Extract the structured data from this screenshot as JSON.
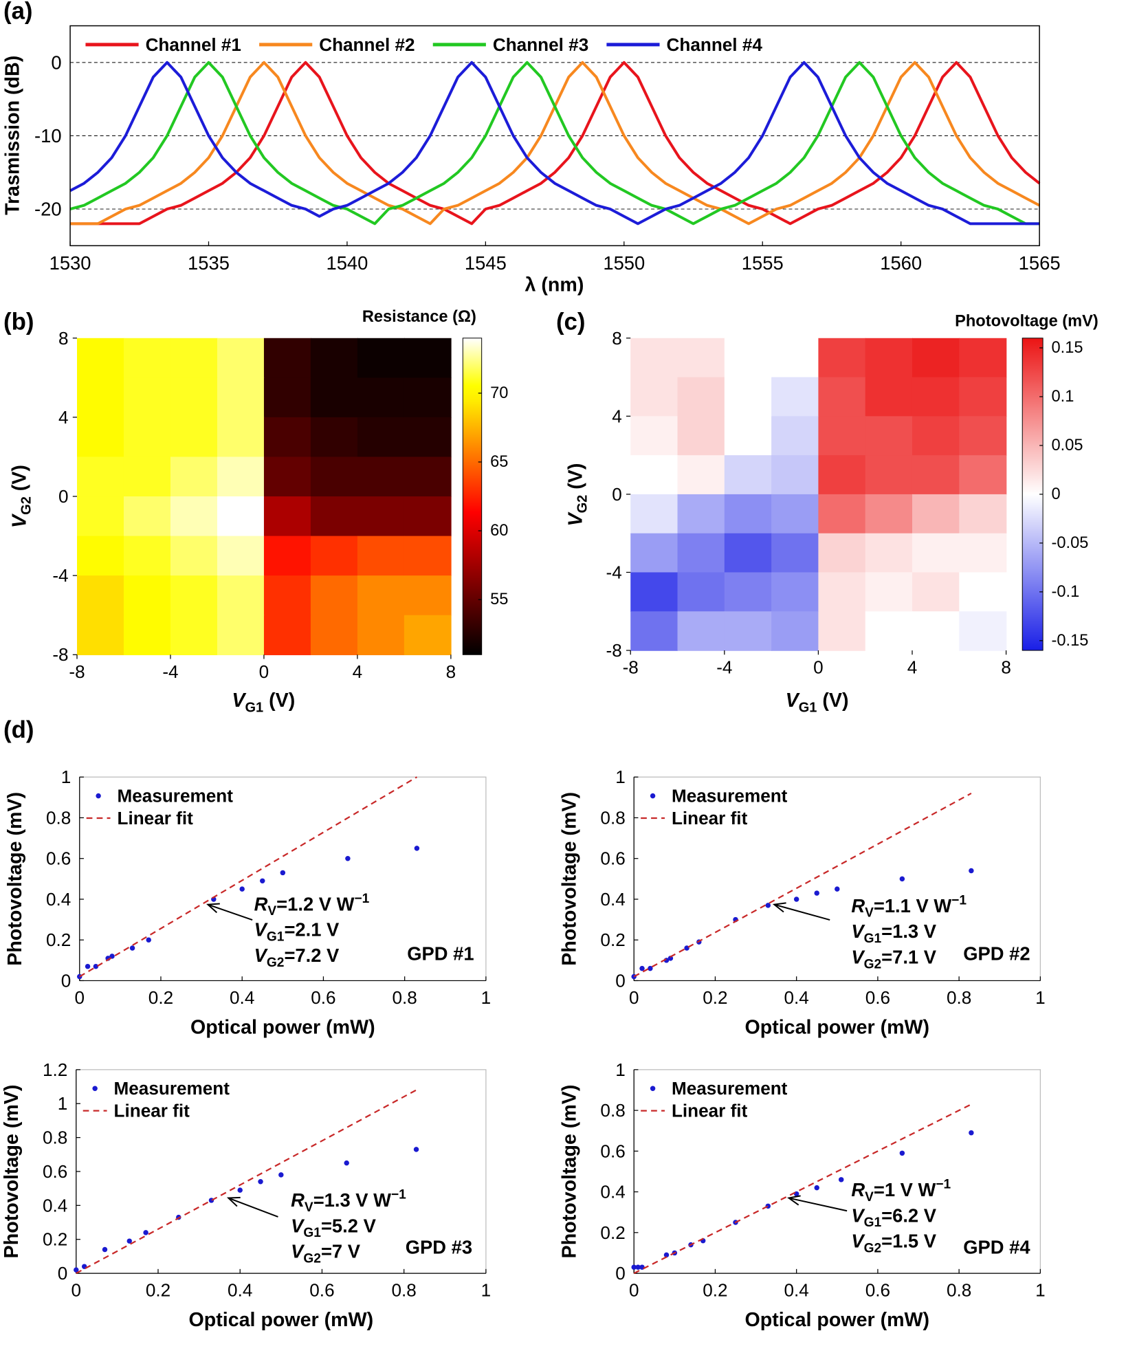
{
  "chart_data": [
    {
      "type": "line",
      "panel": "(a)",
      "xlabel": "λ (nm)",
      "ylabel": "Trasmission (dB)",
      "x": [
        1530,
        1530.5,
        1531,
        1531.5,
        1532,
        1532.5,
        1533,
        1533.5,
        1534,
        1534.5,
        1535,
        1535.5,
        1536,
        1536.5,
        1537,
        1537.5,
        1538,
        1538.5,
        1539,
        1539.5,
        1540,
        1540.5,
        1541,
        1541.5,
        1542,
        1542.5,
        1543,
        1543.5,
        1544,
        1544.5,
        1545,
        1545.5,
        1546,
        1546.5,
        1547,
        1547.5,
        1548,
        1548.5,
        1549,
        1549.5,
        1550,
        1550.5,
        1551,
        1551.5,
        1552,
        1552.5,
        1553,
        1553.5,
        1554,
        1554.5,
        1555,
        1555.5,
        1556,
        1556.5,
        1557,
        1557.5,
        1558,
        1558.5,
        1559,
        1559.5,
        1560,
        1560.5,
        1561,
        1561.5,
        1562,
        1562.5,
        1563,
        1563.5,
        1564,
        1564.5,
        1565
      ],
      "xlim": [
        1530,
        1565
      ],
      "xticks": [
        1530,
        1535,
        1540,
        1545,
        1550,
        1555,
        1560,
        1565
      ],
      "ylim": [
        -25,
        5
      ],
      "yticks": [
        -20,
        -10,
        0
      ],
      "grid": true,
      "grid_style": "dashed",
      "legend": "top-left",
      "series": [
        {
          "name": "Channel #1",
          "color": "#e8141c",
          "values": [
            -22,
            -22,
            -22,
            -22,
            -22,
            -22,
            -21,
            -20,
            -19.5,
            -18.5,
            -17.5,
            -16.5,
            -15,
            -13,
            -10,
            -6,
            -2,
            0,
            -2,
            -6,
            -10,
            -13,
            -15,
            -16.5,
            -17.5,
            -18.5,
            -19.5,
            -20,
            -21,
            -22,
            -20,
            -19.5,
            -18.5,
            -17.5,
            -16.5,
            -15,
            -13,
            -10,
            -6,
            -2,
            0,
            -2,
            -6,
            -10,
            -13,
            -15,
            -16.5,
            -17.5,
            -18.5,
            -19.5,
            -20,
            -21,
            -22,
            -21,
            -20,
            -19.5,
            -18.5,
            -17.5,
            -16.5,
            -15,
            -13,
            -10,
            -6,
            -2,
            0,
            -2,
            -6,
            -10,
            -13,
            -15,
            -16.5
          ]
        },
        {
          "name": "Channel #2",
          "color": "#f7881f",
          "values": [
            -22,
            -22,
            -22,
            -21,
            -20,
            -19.5,
            -18.5,
            -17.5,
            -16.5,
            -15,
            -13,
            -10,
            -6,
            -2,
            0,
            -2,
            -6,
            -10,
            -13,
            -15,
            -16.5,
            -17.5,
            -18.5,
            -19.5,
            -20,
            -21,
            -22,
            -20,
            -19.5,
            -18.5,
            -17.5,
            -16.5,
            -15,
            -13,
            -10,
            -6,
            -2,
            0,
            -2,
            -6,
            -10,
            -13,
            -15,
            -16.5,
            -17.5,
            -18.5,
            -19.5,
            -20,
            -21,
            -22,
            -21,
            -20,
            -19.5,
            -18.5,
            -17.5,
            -16.5,
            -15,
            -13,
            -10,
            -6,
            -2,
            0,
            -2,
            -6,
            -10,
            -13,
            -15,
            -16.5,
            -17.5,
            -18.5,
            -19.5
          ]
        },
        {
          "name": "Channel #3",
          "color": "#22c822",
          "values": [
            -20,
            -19.5,
            -18.5,
            -17.5,
            -16.5,
            -15,
            -13,
            -10,
            -6,
            -2,
            0,
            -2,
            -6,
            -10,
            -13,
            -15,
            -16.5,
            -17.5,
            -18.5,
            -19.5,
            -20,
            -21,
            -22,
            -20,
            -19.5,
            -18.5,
            -17.5,
            -16.5,
            -15,
            -13,
            -10,
            -6,
            -2,
            0,
            -2,
            -6,
            -10,
            -13,
            -15,
            -16.5,
            -17.5,
            -18.5,
            -19.5,
            -20,
            -21,
            -22,
            -21,
            -20,
            -19.5,
            -18.5,
            -17.5,
            -16.5,
            -15,
            -13,
            -10,
            -6,
            -2,
            0,
            -2,
            -6,
            -10,
            -13,
            -15,
            -16.5,
            -17.5,
            -18.5,
            -19.5,
            -20,
            -21,
            -22,
            -22
          ]
        },
        {
          "name": "Channel #4",
          "color": "#1c1cd8",
          "values": [
            -17.5,
            -16.5,
            -15,
            -13,
            -10,
            -6,
            -2,
            0,
            -2,
            -6,
            -10,
            -13,
            -15,
            -16.5,
            -17.5,
            -18.5,
            -19.5,
            -20,
            -21,
            -20,
            -19.5,
            -18.5,
            -17.5,
            -16.5,
            -15,
            -13,
            -10,
            -6,
            -2,
            0,
            -2,
            -6,
            -10,
            -13,
            -15,
            -16.5,
            -17.5,
            -18.5,
            -19.5,
            -20,
            -21,
            -22,
            -21,
            -20,
            -19.5,
            -18.5,
            -17.5,
            -16.5,
            -15,
            -13,
            -10,
            -6,
            -2,
            0,
            -2,
            -6,
            -10,
            -13,
            -15,
            -16.5,
            -17.5,
            -18.5,
            -19.5,
            -20,
            -21,
            -22,
            -22,
            -22,
            -22,
            -22,
            -22
          ]
        }
      ]
    },
    {
      "type": "heatmap",
      "panel": "(b)",
      "xlabel": [
        "V",
        "G1",
        " (V)"
      ],
      "ylabel": [
        "V",
        "G2",
        " (V)"
      ],
      "x": [
        -7,
        -5,
        -3,
        -1,
        1,
        3,
        5,
        7
      ],
      "y": [
        7,
        5,
        3,
        1,
        -1,
        -3,
        -5,
        -7
      ],
      "z": [
        [
          70,
          71,
          71,
          72,
          53,
          52,
          51.5,
          51.5
        ],
        [
          70,
          71,
          71,
          72,
          53,
          52,
          52,
          52
        ],
        [
          70,
          71,
          71,
          72,
          54,
          53,
          52.5,
          52.5
        ],
        [
          71,
          71,
          72,
          73,
          55,
          54,
          54,
          54
        ],
        [
          71,
          72,
          73,
          74,
          58,
          56,
          56,
          56
        ],
        [
          70,
          71,
          72,
          73,
          62,
          63,
          64,
          64
        ],
        [
          69,
          70,
          71,
          72,
          63,
          65,
          66,
          66
        ],
        [
          69,
          70,
          71,
          72,
          63,
          65,
          66,
          67
        ]
      ],
      "xlim": [
        -8,
        8
      ],
      "ylim": [
        -8,
        8
      ],
      "xticks": [
        -8,
        -4,
        0,
        4,
        8
      ],
      "yticks": [
        -8,
        -4,
        0,
        4,
        8
      ],
      "colormap": "hot",
      "zlim": [
        51,
        74
      ],
      "colorbar_title": "Resistance (Ω)",
      "cticks": [
        55,
        60,
        65,
        70
      ]
    },
    {
      "type": "heatmap",
      "panel": "(c)",
      "xlabel": [
        "V",
        "G1",
        " (V)"
      ],
      "ylabel": [
        "V",
        "G2",
        " (V)"
      ],
      "x": [
        -7,
        -5,
        -3,
        -1,
        1,
        3,
        5,
        7
      ],
      "y": [
        7,
        5,
        3,
        1,
        -1,
        -3,
        -5,
        -7
      ],
      "z": [
        [
          0.02,
          0.02,
          0,
          0,
          0.13,
          0.14,
          0.15,
          0.14
        ],
        [
          0.02,
          0.03,
          0,
          -0.02,
          0.12,
          0.14,
          0.14,
          0.13
        ],
        [
          0.01,
          0.03,
          0,
          -0.03,
          0.12,
          0.12,
          0.13,
          0.12
        ],
        [
          0,
          0.01,
          -0.03,
          -0.04,
          0.13,
          0.12,
          0.12,
          0.1
        ],
        [
          -0.02,
          -0.06,
          -0.08,
          -0.07,
          0.1,
          0.08,
          0.05,
          0.03
        ],
        [
          -0.07,
          -0.09,
          -0.12,
          -0.1,
          0.03,
          0.02,
          0.01,
          0.01
        ],
        [
          -0.13,
          -0.1,
          -0.09,
          -0.08,
          0.02,
          0.01,
          0.02,
          0
        ],
        [
          -0.1,
          -0.06,
          -0.06,
          -0.07,
          0.02,
          0,
          0,
          -0.01
        ]
      ],
      "xlim": [
        -8,
        8
      ],
      "ylim": [
        -8,
        8
      ],
      "xticks": [
        -8,
        -4,
        0,
        4,
        8
      ],
      "yticks": [
        -8,
        -4,
        0,
        4,
        8
      ],
      "colormap": "bwr",
      "zlim": [
        -0.16,
        0.16
      ],
      "colorbar_title": "Photovoltage (mV)",
      "cticks": [
        -0.15,
        -0.1,
        -0.05,
        0,
        0.05,
        0.1,
        0.15
      ]
    },
    {
      "type": "scatter",
      "panel": "(d)",
      "xlabel": "Optical power (mW)",
      "ylabel": "Photovoltage (mV)",
      "tag": "GPD #1",
      "xlim": [
        0,
        1
      ],
      "xticks": [
        0,
        0.2,
        0.4,
        0.6,
        0.8,
        1
      ],
      "ylim": [
        0,
        1
      ],
      "yticks": [
        0,
        0.2,
        0.4,
        0.6,
        0.8,
        1
      ],
      "legend": "top-left",
      "annotation": [
        [
          "R",
          "V",
          "=1.2 V W",
          "−1"
        ],
        [
          "V",
          "G1",
          "=2.1 V"
        ],
        [
          "V",
          "G2",
          "=7.2 V"
        ]
      ],
      "series": [
        {
          "name": "Measurement",
          "color": "#1a1ad0",
          "marker": "dot",
          "x": [
            0,
            0.02,
            0.04,
            0.07,
            0.08,
            0.13,
            0.17,
            0.33,
            0.4,
            0.45,
            0.5,
            0.66,
            0.83
          ],
          "values": [
            0.02,
            0.07,
            0.07,
            0.11,
            0.12,
            0.16,
            0.2,
            0.4,
            0.45,
            0.49,
            0.53,
            0.6,
            0.65
          ]
        },
        {
          "name": "Linear fit",
          "color": "#c82828",
          "linestyle": "dashed",
          "x": [
            0,
            0.83
          ],
          "values": [
            0.02,
            1
          ]
        }
      ]
    },
    {
      "type": "scatter",
      "xlabel": "Optical power (mW)",
      "ylabel": "Photovoltage (mV)",
      "tag": "GPD #2",
      "xlim": [
        0,
        1
      ],
      "xticks": [
        0,
        0.2,
        0.4,
        0.6,
        0.8,
        1
      ],
      "ylim": [
        0,
        1
      ],
      "yticks": [
        0,
        0.2,
        0.4,
        0.6,
        0.8,
        1
      ],
      "legend": "top-left",
      "annotation": [
        [
          "R",
          "V",
          "=1.1 V W",
          "−1"
        ],
        [
          "V",
          "G1",
          "=1.3 V"
        ],
        [
          "V",
          "G2",
          "=7.1 V"
        ]
      ],
      "series": [
        {
          "name": "Measurement",
          "color": "#1a1ad0",
          "marker": "dot",
          "x": [
            0,
            0.02,
            0.04,
            0.08,
            0.09,
            0.13,
            0.16,
            0.25,
            0.33,
            0.4,
            0.45,
            0.5,
            0.66,
            0.83
          ],
          "values": [
            0.02,
            0.06,
            0.06,
            0.1,
            0.11,
            0.16,
            0.19,
            0.3,
            0.37,
            0.4,
            0.43,
            0.45,
            0.5,
            0.54
          ]
        },
        {
          "name": "Linear fit",
          "color": "#c82828",
          "linestyle": "dashed",
          "x": [
            0,
            0.83
          ],
          "values": [
            0.02,
            0.92
          ]
        }
      ]
    },
    {
      "type": "scatter",
      "xlabel": "Optical power (mW)",
      "ylabel": "Photovoltage (mV)",
      "tag": "GPD #3",
      "xlim": [
        0,
        1
      ],
      "xticks": [
        0,
        0.2,
        0.4,
        0.6,
        0.8,
        1
      ],
      "ylim": [
        0,
        1.2
      ],
      "yticks": [
        0,
        0.2,
        0.4,
        0.6,
        0.8,
        1,
        1.2
      ],
      "legend": "top-left",
      "annotation": [
        [
          "R",
          "V",
          "=1.3 V W",
          "−1"
        ],
        [
          "V",
          "G1",
          "=5.2 V"
        ],
        [
          "V",
          "G2",
          "=7 V"
        ]
      ],
      "series": [
        {
          "name": "Measurement",
          "color": "#1a1ad0",
          "marker": "dot",
          "x": [
            0,
            0.02,
            0.07,
            0.13,
            0.17,
            0.25,
            0.33,
            0.4,
            0.45,
            0.5,
            0.66,
            0.83
          ],
          "values": [
            0.02,
            0.04,
            0.14,
            0.19,
            0.24,
            0.33,
            0.43,
            0.49,
            0.54,
            0.58,
            0.65,
            0.73
          ]
        },
        {
          "name": "Linear fit",
          "color": "#c82828",
          "linestyle": "dashed",
          "x": [
            0,
            0.83
          ],
          "values": [
            0,
            1.08
          ]
        }
      ]
    },
    {
      "type": "scatter",
      "xlabel": "Optical power (mW)",
      "ylabel": "Photovoltage (mV)",
      "tag": "GPD #4",
      "xlim": [
        0,
        1
      ],
      "xticks": [
        0,
        0.2,
        0.4,
        0.6,
        0.8,
        1
      ],
      "ylim": [
        0,
        1
      ],
      "yticks": [
        0,
        0.2,
        0.4,
        0.6,
        0.8,
        1
      ],
      "legend": "top-left",
      "annotation": [
        [
          "R",
          "V",
          "=1 V W",
          "−1"
        ],
        [
          "V",
          "G1",
          "=6.2 V"
        ],
        [
          "V",
          "G2",
          "=1.5 V"
        ]
      ],
      "series": [
        {
          "name": "Measurement",
          "color": "#1a1ad0",
          "marker": "dot",
          "x": [
            0,
            0.01,
            0.02,
            0.08,
            0.1,
            0.14,
            0.17,
            0.25,
            0.33,
            0.4,
            0.45,
            0.51,
            0.66,
            0.83
          ],
          "values": [
            0.03,
            0.03,
            0.03,
            0.09,
            0.1,
            0.14,
            0.16,
            0.25,
            0.33,
            0.39,
            0.42,
            0.46,
            0.59,
            0.69
          ]
        },
        {
          "name": "Linear fit",
          "color": "#c82828",
          "linestyle": "dashed",
          "x": [
            0,
            0.83
          ],
          "values": [
            0,
            0.83
          ]
        }
      ]
    }
  ]
}
